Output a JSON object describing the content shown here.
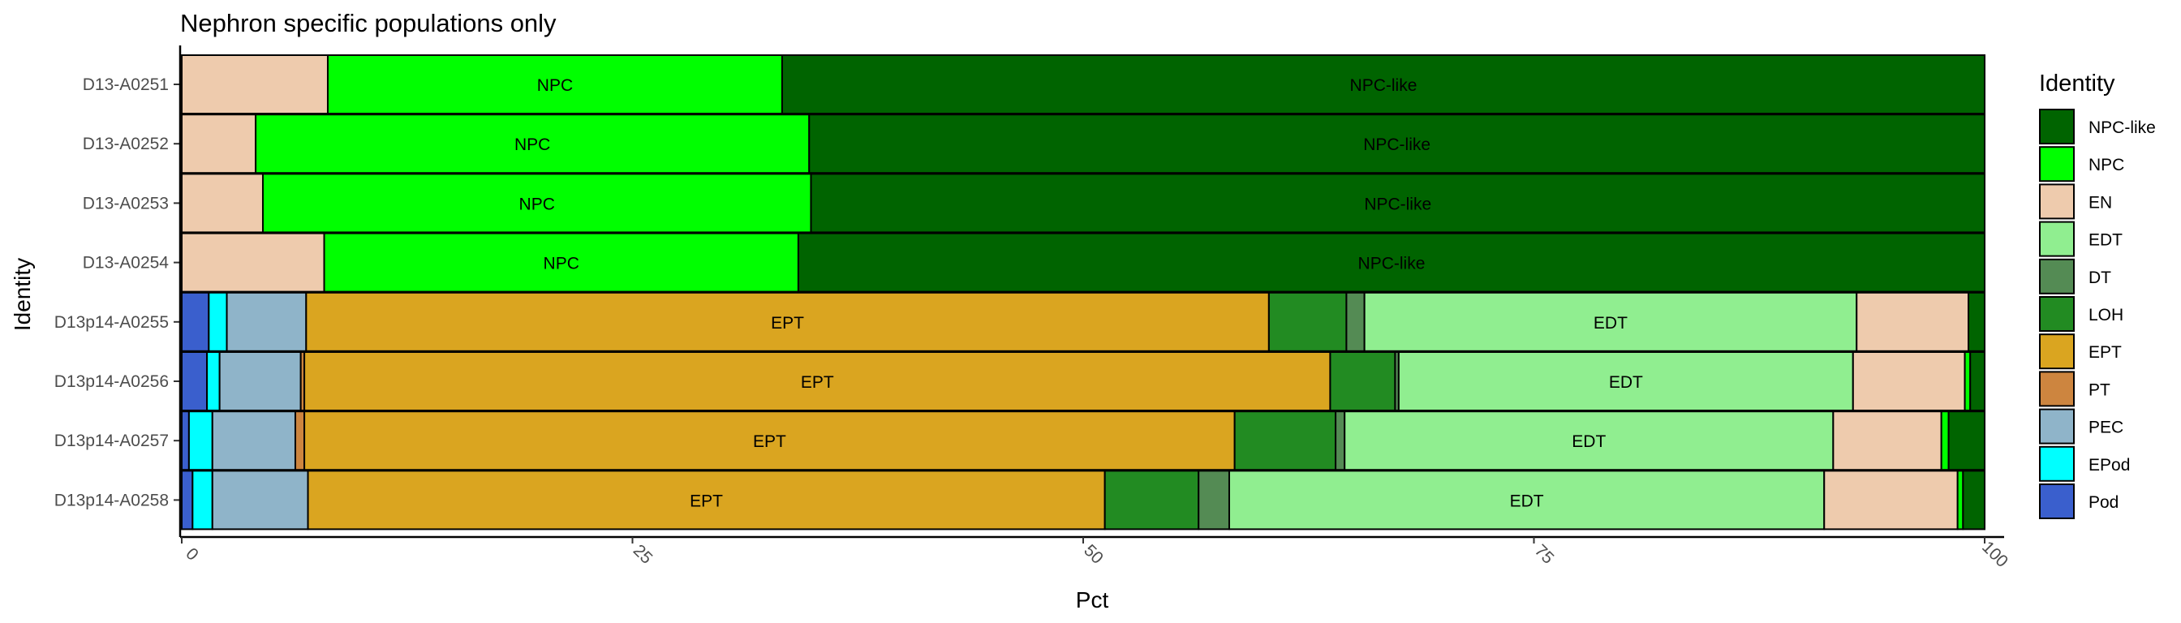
{
  "chart_data": {
    "type": "bar",
    "orientation": "horizontal",
    "stacked": true,
    "title": "Nephron specific populations only",
    "xlabel": "Pct",
    "ylabel": "Identity",
    "xlim": [
      0,
      100
    ],
    "xticks": [
      0,
      25,
      50,
      75,
      100
    ],
    "grid": false,
    "legend": {
      "title": "Identity",
      "position": "right",
      "entries": [
        "NPC-like",
        "NPC",
        "EN",
        "EDT",
        "DT",
        "LOH",
        "EPT",
        "PT",
        "PEC",
        "EPod",
        "Pod"
      ]
    },
    "colors": {
      "NPC-like": "#006400",
      "NPC": "#00ff00",
      "EN": "#eecbad",
      "EDT": "#90ee90",
      "DT": "#548b54",
      "LOH": "#228b22",
      "EPT": "#daa520",
      "PT": "#cd853f",
      "PEC": "#8fb4c9",
      "EPod": "#00ffff",
      "Pod": "#3a5fcd"
    },
    "stack_order": [
      "Pod",
      "EPod",
      "PEC",
      "PT",
      "EPT",
      "LOH",
      "DT",
      "EDT",
      "EN",
      "NPC",
      "NPC-like"
    ],
    "labeled_series": [
      "NPC",
      "NPC-like",
      "EPT",
      "EDT"
    ],
    "categories": [
      "D13-A0251",
      "D13-A0252",
      "D13-A0253",
      "D13-A0254",
      "D13p14-A0255",
      "D13p14-A0256",
      "D13p14-A0257",
      "D13p14-A0258"
    ],
    "series": [
      {
        "name": "Pod",
        "values": [
          0,
          0,
          0,
          0,
          1.5,
          1.4,
          0.4,
          0.6
        ]
      },
      {
        "name": "EPod",
        "values": [
          0,
          0,
          0,
          0,
          1.0,
          0.7,
          1.3,
          1.1
        ]
      },
      {
        "name": "PEC",
        "values": [
          0,
          0,
          0,
          0,
          4.4,
          4.5,
          4.6,
          5.3
        ]
      },
      {
        "name": "PT",
        "values": [
          0,
          0,
          0,
          0,
          0,
          0.2,
          0.5,
          0
        ]
      },
      {
        "name": "EPT",
        "values": [
          0,
          0,
          0,
          0,
          53.4,
          56.9,
          51.6,
          44.2
        ]
      },
      {
        "name": "LOH",
        "values": [
          0,
          0,
          0,
          0,
          4.3,
          3.6,
          5.6,
          5.2
        ]
      },
      {
        "name": "DT",
        "values": [
          0,
          0,
          0,
          0,
          1.0,
          0.2,
          0.5,
          1.7
        ]
      },
      {
        "name": "EDT",
        "values": [
          0,
          0,
          0,
          0,
          27.3,
          25.2,
          27.1,
          33.0
        ]
      },
      {
        "name": "EN",
        "values": [
          8.1,
          4.1,
          4.5,
          7.9,
          6.2,
          6.2,
          6.0,
          7.4
        ]
      },
      {
        "name": "NPC",
        "values": [
          25.2,
          30.7,
          30.4,
          26.3,
          0,
          0.3,
          0.4,
          0.3
        ]
      },
      {
        "name": "NPC-like",
        "values": [
          66.7,
          65.2,
          65.1,
          65.8,
          0.9,
          0.8,
          2.0,
          1.2
        ]
      }
    ]
  }
}
